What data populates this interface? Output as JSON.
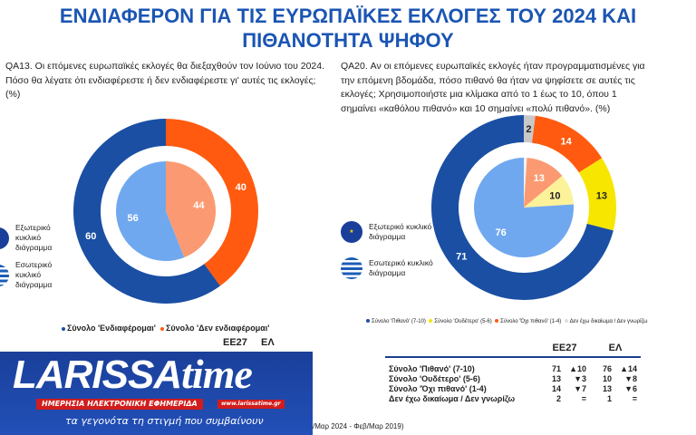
{
  "title_line1": "ΕΝΔΙΑΦΕΡΟΝ ΓΙΑ ΤΙΣ ΕΥΡΩΠΑΪΚΕΣ ΕΚΛΟΓΕΣ ΤΟΥ 2024 ΚΑΙ",
  "title_line2": "ΠΙΘΑΝΟΤΗΤΑ ΨΗΦΟΥ",
  "q1": "QA13. Οι επόμενες ευρωπαϊκές εκλογές θα διεξαχθούν τον Ιούνιο του 2024. Πόσο θα λέγατε ότι ενδιαφέρεστε ή δεν ενδιαφέρεστε γι' αυτές τις εκλογές; (%)",
  "q2_lines": [
    "QA20. Αν οι επόμενες ευρωπαϊκές εκλογές ήταν προγραμματισμένες για",
    "την επόμενη βδομάδα, πόσο πιθανό θα ήταν να ψηφίσετε σε αυτές τις",
    "εκλογές; Χρησιμοποιήστε μια κλίμακα από το 1 έως το 10, όπου 1",
    "σημαίνει «καθόλου πιθανό» και 10 σημαίνει «πολύ πιθανό». (%)"
  ],
  "ring_legend": {
    "outer": "Εξωτερικό κυκλικό διάγραμμα",
    "inner": "Εσωτερικό κυκλικό διάγραμμα",
    "outer_icon": "eu-flag-icon",
    "inner_icon": "greek-flag-icon"
  },
  "chart_data": [
    {
      "type": "pie",
      "subtype": "nested-donut",
      "outer_series": "ΕΕ27",
      "inner_series": "ΕΛ",
      "categories": [
        "Σύνολο 'Ενδιαφέρομαι'",
        "Σύνολο 'Δεν ενδιαφέρομαι'"
      ],
      "colors_outer": [
        "#1a4fa3",
        "#ff5a0f"
      ],
      "colors_inner": [
        "#70a8ef",
        "#fb9a72"
      ],
      "outer": [
        60,
        40
      ],
      "inner": [
        56,
        44
      ]
    },
    {
      "type": "pie",
      "subtype": "nested-donut",
      "outer_series": "ΕΕ27",
      "inner_series": "ΕΛ",
      "categories": [
        "Σύνολο 'Πιθανό' (7-10)",
        "Σύνολο 'Ουδέτερο' (5-6)",
        "Σύνολο 'Όχι πιθανό' (1-4)",
        "Δεν έχω δικαίωμα / Δεν γνωρίζω"
      ],
      "colors_outer": [
        "#1a4fa3",
        "#f7e600",
        "#ff5a0f",
        "#c8c8c8"
      ],
      "colors_inner": [
        "#70a8ef",
        "#fbf29a",
        "#fb9a72",
        "#f0f0f0"
      ],
      "outer": [
        71,
        13,
        14,
        2
      ],
      "inner": [
        76,
        10,
        13,
        1
      ]
    }
  ],
  "table2": {
    "headers": [
      "ΕΕ27",
      "ΕΛ"
    ],
    "rows": [
      {
        "label": "Σύνολο 'Πιθανό' (7-10)",
        "eu": "71",
        "eu_ch": "▲10",
        "gr": "76",
        "gr_ch": "▲14"
      },
      {
        "label": "Σύνολο 'Ουδέτερο' (5-6)",
        "eu": "13",
        "eu_ch": "▼3",
        "gr": "10",
        "gr_ch": "▼8"
      },
      {
        "label": "Σύνολο 'Όχι πιθανό' (1-4)",
        "eu": "14",
        "eu_ch": "▼7",
        "gr": "13",
        "gr_ch": "▼6"
      },
      {
        "label": "Δεν έχω δικαίωμα / Δεν γνωρίζω",
        "eu": "2",
        "eu_ch": "=",
        "gr": "1",
        "gr_ch": "="
      }
    ]
  },
  "table1_headers": [
    "ΕΕ27",
    "ΕΛ"
  ],
  "source": "/Μαρ 2024 - Φεβ/Μαρ 2019)",
  "banner": {
    "logo_main": "LARISSA",
    "logo_t": "time",
    "url": "www.larissatime.gr",
    "subtitle": "ΗΜΕΡΗΣΙΑ ΗΛΕΚΤΡΟΝΙΚΗ ΕΦΗΜΕΡΙΔΑ",
    "tagline": "τα γεγονότα τη στιγμή που συμβαίνουν"
  }
}
